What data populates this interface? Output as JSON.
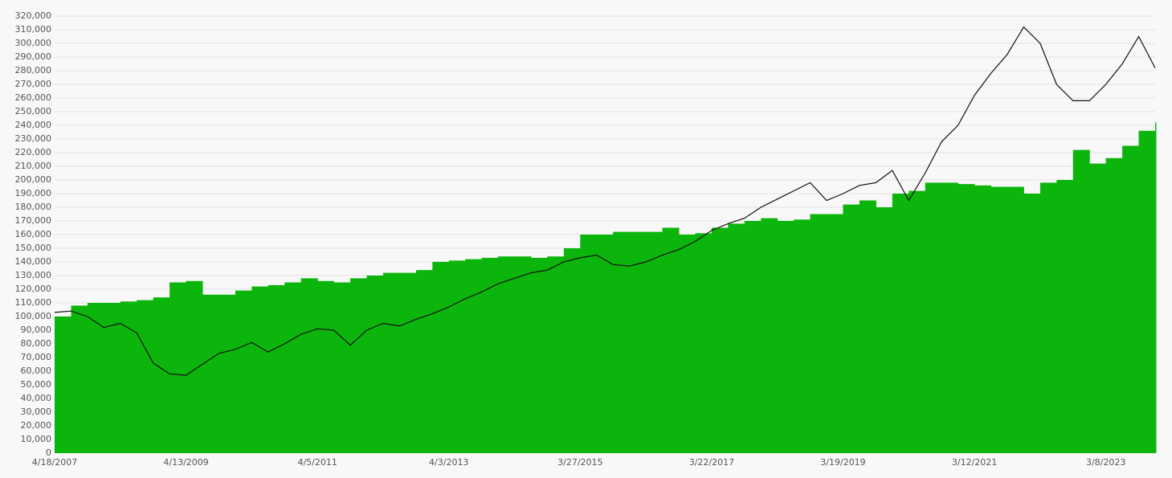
{
  "chart_data": {
    "type": "combo",
    "categories": [
      "4/18/2007",
      null,
      null,
      null,
      null,
      null,
      null,
      null,
      "4/13/2009",
      null,
      null,
      null,
      null,
      null,
      null,
      null,
      "4/5/2011",
      null,
      null,
      null,
      null,
      null,
      null,
      null,
      "4/3/2013",
      null,
      null,
      null,
      null,
      null,
      null,
      null,
      "3/27/2015",
      null,
      null,
      null,
      null,
      null,
      null,
      null,
      "3/22/2017",
      null,
      null,
      null,
      null,
      null,
      null,
      null,
      "3/19/2019",
      null,
      null,
      null,
      null,
      null,
      null,
      null,
      "3/12/2021",
      null,
      null,
      null,
      null,
      null,
      null,
      null,
      "3/8/2023",
      null,
      null,
      null
    ],
    "series": [
      {
        "type": "bar",
        "color": "#0cb50c",
        "values": [
          100000,
          108000,
          110000,
          110000,
          111000,
          112000,
          114000,
          125000,
          126000,
          116000,
          116000,
          119000,
          122000,
          123000,
          125000,
          128000,
          126000,
          125000,
          128000,
          130000,
          132000,
          132000,
          134000,
          140000,
          141000,
          142000,
          143000,
          144000,
          144000,
          143000,
          144000,
          150000,
          160000,
          160000,
          162000,
          162000,
          162000,
          165000,
          160000,
          161000,
          165000,
          168000,
          170000,
          172000,
          170000,
          171000,
          175000,
          175000,
          182000,
          185000,
          180000,
          190000,
          192000,
          198000,
          198000,
          197000,
          196000,
          195000,
          195000,
          190000,
          198000,
          200000,
          222000,
          212000,
          216000,
          225000,
          236000,
          242000
        ]
      },
      {
        "type": "line",
        "color": "#111111",
        "values": [
          103000,
          104000,
          100000,
          92000,
          95000,
          88000,
          66000,
          58000,
          57000,
          65000,
          73000,
          76000,
          81000,
          74000,
          80000,
          87000,
          91000,
          90000,
          79000,
          90000,
          95000,
          93000,
          98000,
          102000,
          107000,
          113000,
          118000,
          124000,
          128000,
          132000,
          134000,
          140000,
          143000,
          145000,
          138000,
          137000,
          140000,
          145000,
          149000,
          155000,
          163000,
          168000,
          172000,
          180000,
          186000,
          192000,
          198000,
          185000,
          190000,
          196000,
          198000,
          207000,
          185000,
          205000,
          228000,
          240000,
          262000,
          278000,
          292000,
          312000,
          300000,
          270000,
          258000,
          258000,
          270000,
          285000,
          305000,
          282000
        ]
      }
    ],
    "ylim": [
      0,
      320000
    ],
    "yticks": [
      0,
      {
        "value": 10000,
        "label": "10,000"
      },
      {
        "value": 20000,
        "label": "20,000"
      },
      {
        "value": 30000,
        "label": "30,000"
      },
      {
        "value": 40000,
        "label": "40,000"
      },
      {
        "value": 50000,
        "label": "50,000"
      },
      {
        "value": 60000,
        "label": "60,000"
      },
      {
        "value": 70000,
        "label": "70,000"
      },
      {
        "value": 80000,
        "label": "80,000"
      },
      {
        "value": 90000,
        "label": "90,000"
      },
      {
        "value": 100000,
        "label": "100,000"
      },
      {
        "value": 110000,
        "label": "110,000"
      },
      {
        "value": 120000,
        "label": "120,000"
      },
      {
        "value": 130000,
        "label": "130,000"
      },
      {
        "value": 140000,
        "label": "140,000"
      },
      {
        "value": 150000,
        "label": "150,000"
      },
      {
        "value": 160000,
        "label": "160,000"
      },
      {
        "value": 170000,
        "label": "170,000"
      },
      {
        "value": 180000,
        "label": "180,000"
      },
      {
        "value": 190000,
        "label": "190,000"
      },
      {
        "value": 200000,
        "label": "200,000"
      },
      {
        "value": 210000,
        "label": "210,000"
      },
      {
        "value": 220000,
        "label": "220,000"
      },
      {
        "value": 230000,
        "label": "230,000"
      },
      {
        "value": 240000,
        "label": "240,000"
      },
      {
        "value": 250000,
        "label": "250,000"
      },
      {
        "value": 260000,
        "label": "260,000"
      },
      {
        "value": 270000,
        "label": "270,000"
      },
      {
        "value": 280000,
        "label": "280,000"
      },
      {
        "value": 290000,
        "label": "290,000"
      },
      {
        "value": 300000,
        "label": "300,000"
      },
      {
        "value": 310000,
        "label": "310,000"
      },
      {
        "value": 320000,
        "label": "320,000"
      }
    ],
    "grid": true
  }
}
